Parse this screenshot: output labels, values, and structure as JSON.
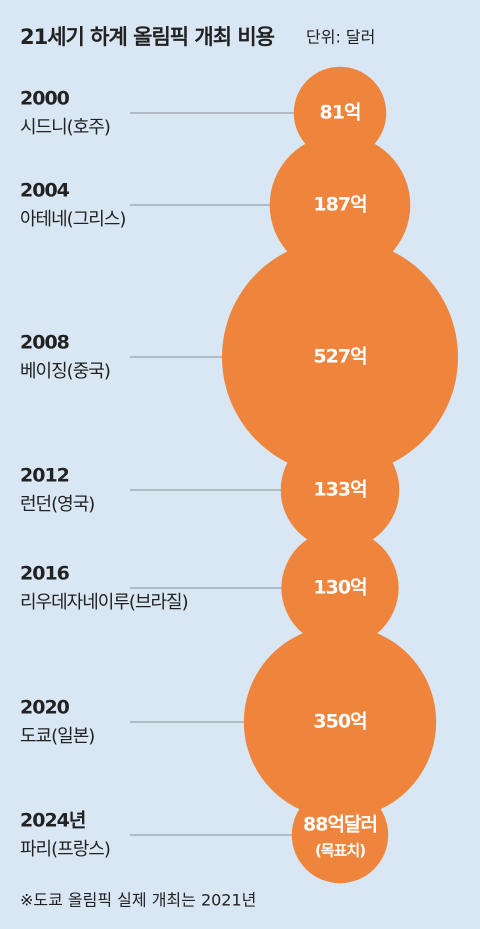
{
  "chart_data": {
    "type": "bubble",
    "title": "21세기 하계 올림픽 개최 비용",
    "subtitle": "단위: 달러",
    "categories": [
      "2000",
      "2004",
      "2008",
      "2012",
      "2016",
      "2020",
      "2024년"
    ],
    "cities": [
      "시드니(호주)",
      "아테네(그리스)",
      "베이징(중국)",
      "런던(영국)",
      "리우데자네이루(브라질)",
      "도쿄(일본)",
      "파리(프랑스)"
    ],
    "values": [
      81,
      187,
      527,
      133,
      130,
      350,
      88
    ],
    "value_labels": [
      "81억",
      "187억",
      "527억",
      "133억",
      "130억",
      "350억",
      "88억달러"
    ],
    "last_label_note": "(목표치)",
    "color": "#ef843c",
    "footnote": "※도쿄 올림픽 실제 개최는 2021년"
  }
}
